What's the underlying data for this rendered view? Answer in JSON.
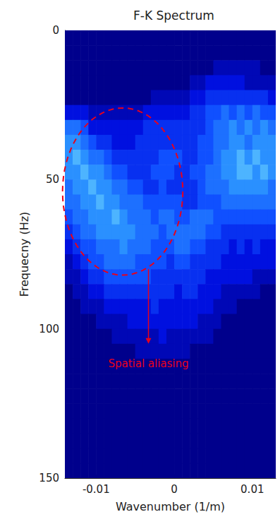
{
  "chart_data": {
    "type": "heatmap",
    "title": "F-K Spectrum",
    "x_label": "Wavenumber (1/m)",
    "y_label": "Frequecny (Hz)",
    "xlim": [
      -0.014,
      0.013
    ],
    "xticks": [
      -0.01,
      0,
      0.01
    ],
    "ylim": [
      0,
      150
    ],
    "yticks": [
      0,
      50,
      100,
      150
    ],
    "y_inverted": true,
    "grid": false,
    "zlim": [
      0,
      10
    ],
    "colors": [
      "#00008c",
      "#0010e0",
      "#1050ff",
      "#2a90ff",
      "#70d8ff",
      "#b0f4ff"
    ],
    "x_bins": [
      -0.014,
      -0.013,
      -0.012,
      -0.011,
      -0.01,
      -0.009,
      -0.008,
      -0.007,
      -0.006,
      -0.005,
      -0.004,
      -0.003,
      -0.002,
      -0.001,
      0,
      0.001,
      0.002,
      0.003,
      0.004,
      0.005,
      0.006,
      0.007,
      0.008,
      0.009,
      0.01,
      0.011,
      0.012,
      0.013
    ],
    "y_bins": [
      0,
      5,
      10,
      15,
      20,
      25,
      30,
      35,
      40,
      45,
      50,
      55,
      60,
      65,
      70,
      75,
      80,
      85,
      90,
      95,
      100,
      105,
      110,
      115,
      120,
      125,
      130,
      135,
      140,
      145,
      150
    ],
    "cells": [
      [
        0,
        0,
        0,
        0,
        0,
        0,
        0,
        0,
        0,
        0,
        0,
        0,
        0,
        0,
        0,
        0,
        0,
        0,
        0,
        0,
        0,
        0,
        0,
        0,
        0,
        0,
        0
      ],
      [
        0,
        0,
        0,
        0,
        0,
        0,
        0,
        0,
        0,
        0,
        0,
        0,
        0,
        0,
        0,
        0,
        0,
        0,
        0,
        0,
        0,
        0,
        0,
        0,
        0,
        0,
        0
      ],
      [
        0,
        0,
        0,
        0,
        0,
        0,
        0,
        0,
        0,
        0,
        0,
        0,
        0,
        0,
        0,
        0,
        0,
        0,
        0,
        1,
        1,
        1,
        1,
        1,
        1,
        0,
        0
      ],
      [
        0,
        0,
        0,
        0,
        0,
        0,
        0,
        0,
        0,
        0,
        0,
        0,
        0,
        0,
        0,
        0,
        1,
        1,
        2,
        2,
        2,
        2,
        2,
        1,
        1,
        1,
        1
      ],
      [
        0,
        0,
        0,
        0,
        0,
        0,
        0,
        0,
        0,
        0,
        0,
        1,
        1,
        1,
        1,
        1,
        2,
        2,
        3,
        3,
        3,
        3,
        3,
        3,
        3,
        3,
        2
      ],
      [
        2,
        2,
        2,
        1,
        1,
        1,
        1,
        1,
        1,
        1,
        2,
        2,
        2,
        2,
        2,
        2,
        3,
        3,
        4,
        4,
        5,
        4,
        5,
        4,
        5,
        4,
        4
      ],
      [
        5,
        5,
        4,
        2,
        2,
        2,
        2,
        2,
        2,
        2,
        3,
        3,
        3,
        3,
        3,
        3,
        3,
        3,
        4,
        5,
        5,
        6,
        5,
        6,
        5,
        6,
        5
      ],
      [
        6,
        6,
        5,
        4,
        3,
        3,
        2,
        2,
        2,
        3,
        3,
        3,
        3,
        3,
        3,
        3,
        3,
        4,
        4,
        5,
        5,
        6,
        6,
        5,
        6,
        6,
        6
      ],
      [
        6,
        7,
        6,
        5,
        5,
        4,
        3,
        3,
        3,
        3,
        3,
        3,
        4,
        4,
        4,
        3,
        3,
        4,
        4,
        5,
        6,
        6,
        7,
        6,
        7,
        6,
        6
      ],
      [
        6,
        6,
        7,
        6,
        6,
        5,
        4,
        4,
        3,
        3,
        3,
        4,
        4,
        4,
        3,
        3,
        4,
        4,
        5,
        5,
        6,
        6,
        7,
        7,
        6,
        7,
        6
      ],
      [
        5,
        6,
        6,
        7,
        6,
        6,
        5,
        5,
        4,
        4,
        3,
        3,
        4,
        3,
        3,
        3,
        3,
        4,
        5,
        5,
        5,
        6,
        6,
        6,
        6,
        6,
        5
      ],
      [
        5,
        5,
        6,
        6,
        7,
        6,
        6,
        5,
        5,
        5,
        4,
        4,
        4,
        4,
        4,
        3,
        3,
        4,
        4,
        4,
        5,
        5,
        5,
        5,
        5,
        5,
        5
      ],
      [
        4,
        5,
        5,
        6,
        6,
        6,
        7,
        6,
        5,
        5,
        5,
        4,
        5,
        5,
        4,
        4,
        5,
        5,
        5,
        4,
        4,
        4,
        4,
        4,
        4,
        4,
        4
      ],
      [
        3,
        4,
        5,
        5,
        6,
        6,
        6,
        6,
        6,
        5,
        5,
        5,
        4,
        5,
        5,
        5,
        5,
        5,
        4,
        4,
        3,
        3,
        3,
        3,
        3,
        3,
        3
      ],
      [
        2,
        3,
        4,
        4,
        5,
        5,
        5,
        6,
        5,
        5,
        5,
        4,
        4,
        4,
        5,
        5,
        4,
        4,
        3,
        3,
        3,
        2,
        3,
        2,
        3,
        2,
        2
      ],
      [
        1,
        2,
        3,
        4,
        4,
        5,
        5,
        5,
        5,
        4,
        4,
        4,
        4,
        3,
        4,
        4,
        3,
        3,
        3,
        3,
        2,
        2,
        2,
        2,
        2,
        2,
        2
      ],
      [
        1,
        1,
        2,
        3,
        3,
        4,
        4,
        4,
        4,
        4,
        4,
        3,
        3,
        3,
        3,
        3,
        3,
        3,
        2,
        2,
        2,
        2,
        2,
        2,
        1,
        1,
        1
      ],
      [
        0,
        1,
        1,
        2,
        2,
        3,
        3,
        3,
        3,
        3,
        3,
        3,
        3,
        3,
        2,
        3,
        3,
        2,
        2,
        2,
        1,
        1,
        1,
        1,
        1,
        0,
        0
      ],
      [
        0,
        0,
        1,
        1,
        1,
        2,
        2,
        2,
        2,
        2,
        2,
        3,
        2,
        2,
        2,
        2,
        2,
        2,
        2,
        1,
        1,
        1,
        0,
        0,
        0,
        0,
        0
      ],
      [
        0,
        0,
        0,
        0,
        1,
        1,
        1,
        1,
        2,
        2,
        2,
        2,
        2,
        2,
        2,
        2,
        2,
        1,
        1,
        1,
        0,
        0,
        0,
        0,
        0,
        0,
        0
      ],
      [
        0,
        0,
        0,
        0,
        0,
        0,
        1,
        1,
        1,
        1,
        1,
        1,
        2,
        1,
        1,
        1,
        1,
        1,
        1,
        0,
        0,
        0,
        0,
        0,
        0,
        0,
        0
      ],
      [
        0,
        0,
        0,
        0,
        0,
        0,
        0,
        0,
        0,
        1,
        1,
        1,
        1,
        1,
        1,
        1,
        0,
        0,
        0,
        0,
        0,
        0,
        0,
        0,
        0,
        0,
        0
      ],
      [
        0,
        0,
        0,
        0,
        0,
        0,
        0,
        0,
        0,
        0,
        0,
        0,
        0,
        0,
        0,
        0,
        0,
        0,
        0,
        0,
        0,
        0,
        0,
        0,
        0,
        0,
        0
      ],
      [
        0,
        0,
        0,
        0,
        0,
        0,
        0,
        0,
        0,
        0,
        0,
        0,
        0,
        0,
        0,
        0,
        0,
        0,
        0,
        0,
        0,
        0,
        0,
        0,
        0,
        0,
        0
      ],
      [
        0,
        0,
        0,
        0,
        0,
        0,
        0,
        0,
        0,
        0,
        0,
        0,
        0,
        0,
        0,
        0,
        0,
        0,
        0,
        0,
        0,
        0,
        0,
        0,
        0,
        0,
        0
      ],
      [
        0,
        0,
        0,
        0,
        0,
        0,
        0,
        0,
        0,
        0,
        0,
        0,
        0,
        0,
        0,
        0,
        0,
        0,
        0,
        0,
        0,
        0,
        0,
        0,
        0,
        0,
        0
      ],
      [
        0,
        0,
        0,
        0,
        0,
        0,
        0,
        0,
        0,
        0,
        0,
        0,
        0,
        0,
        0,
        0,
        0,
        0,
        0,
        0,
        0,
        0,
        0,
        0,
        0,
        0,
        0
      ],
      [
        0,
        0,
        0,
        0,
        0,
        0,
        0,
        0,
        0,
        0,
        0,
        0,
        0,
        0,
        0,
        0,
        0,
        0,
        0,
        0,
        0,
        0,
        0,
        0,
        0,
        0,
        0
      ],
      [
        0,
        0,
        0,
        0,
        0,
        0,
        0,
        0,
        0,
        0,
        0,
        0,
        0,
        0,
        0,
        0,
        0,
        0,
        0,
        0,
        0,
        0,
        0,
        0,
        0,
        0,
        0
      ],
      [
        0,
        0,
        0,
        0,
        0,
        0,
        0,
        0,
        0,
        0,
        0,
        0,
        0,
        0,
        0,
        0,
        0,
        0,
        0,
        0,
        0,
        0,
        0,
        0,
        0,
        0,
        0
      ]
    ],
    "annotations": [
      {
        "text": "Spatial aliasing",
        "color": "#e8001c",
        "x": -0.0033,
        "y": 110,
        "ellipse_center": [
          -0.0066,
          54
        ],
        "ellipse_radius": [
          0.0077,
          28
        ],
        "arrow_from": [
          -0.0033,
          80
        ],
        "arrow_to": [
          -0.0033,
          105
        ]
      }
    ]
  }
}
